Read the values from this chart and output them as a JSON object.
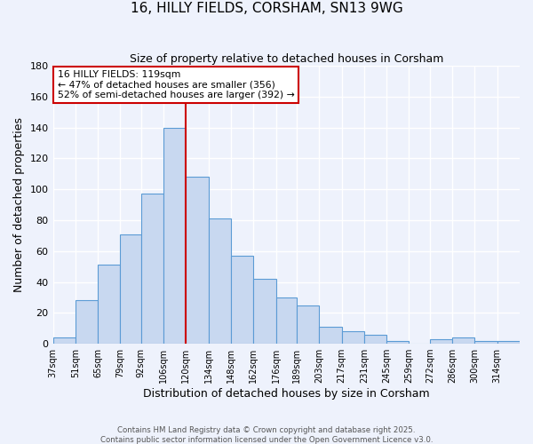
{
  "title": "16, HILLY FIELDS, CORSHAM, SN13 9WG",
  "subtitle": "Size of property relative to detached houses in Corsham",
  "xlabel": "Distribution of detached houses by size in Corsham",
  "ylabel": "Number of detached properties",
  "bar_color": "#c8d8f0",
  "bar_edge_color": "#5b9bd5",
  "background_color": "#eef2fc",
  "grid_color": "#ffffff",
  "vline_x": 120,
  "vline_color": "#cc0000",
  "categories": [
    "37sqm",
    "51sqm",
    "65sqm",
    "79sqm",
    "92sqm",
    "106sqm",
    "120sqm",
    "134sqm",
    "148sqm",
    "162sqm",
    "176sqm",
    "189sqm",
    "203sqm",
    "217sqm",
    "231sqm",
    "245sqm",
    "259sqm",
    "272sqm",
    "286sqm",
    "300sqm",
    "314sqm"
  ],
  "bin_edges": [
    37,
    51,
    65,
    79,
    92,
    106,
    120,
    134,
    148,
    162,
    176,
    189,
    203,
    217,
    231,
    245,
    259,
    272,
    286,
    300,
    314,
    328
  ],
  "values": [
    4,
    28,
    51,
    71,
    97,
    140,
    108,
    81,
    57,
    42,
    30,
    25,
    11,
    8,
    6,
    2,
    0,
    3,
    4,
    2,
    2
  ],
  "ylim": [
    0,
    180
  ],
  "yticks": [
    0,
    20,
    40,
    60,
    80,
    100,
    120,
    140,
    160,
    180
  ],
  "annotation_line1": "16 HILLY FIELDS: 119sqm",
  "annotation_line2": "← 47% of detached houses are smaller (356)",
  "annotation_line3": "52% of semi-detached houses are larger (392) →",
  "footer1": "Contains HM Land Registry data © Crown copyright and database right 2025.",
  "footer2": "Contains public sector information licensed under the Open Government Licence v3.0."
}
